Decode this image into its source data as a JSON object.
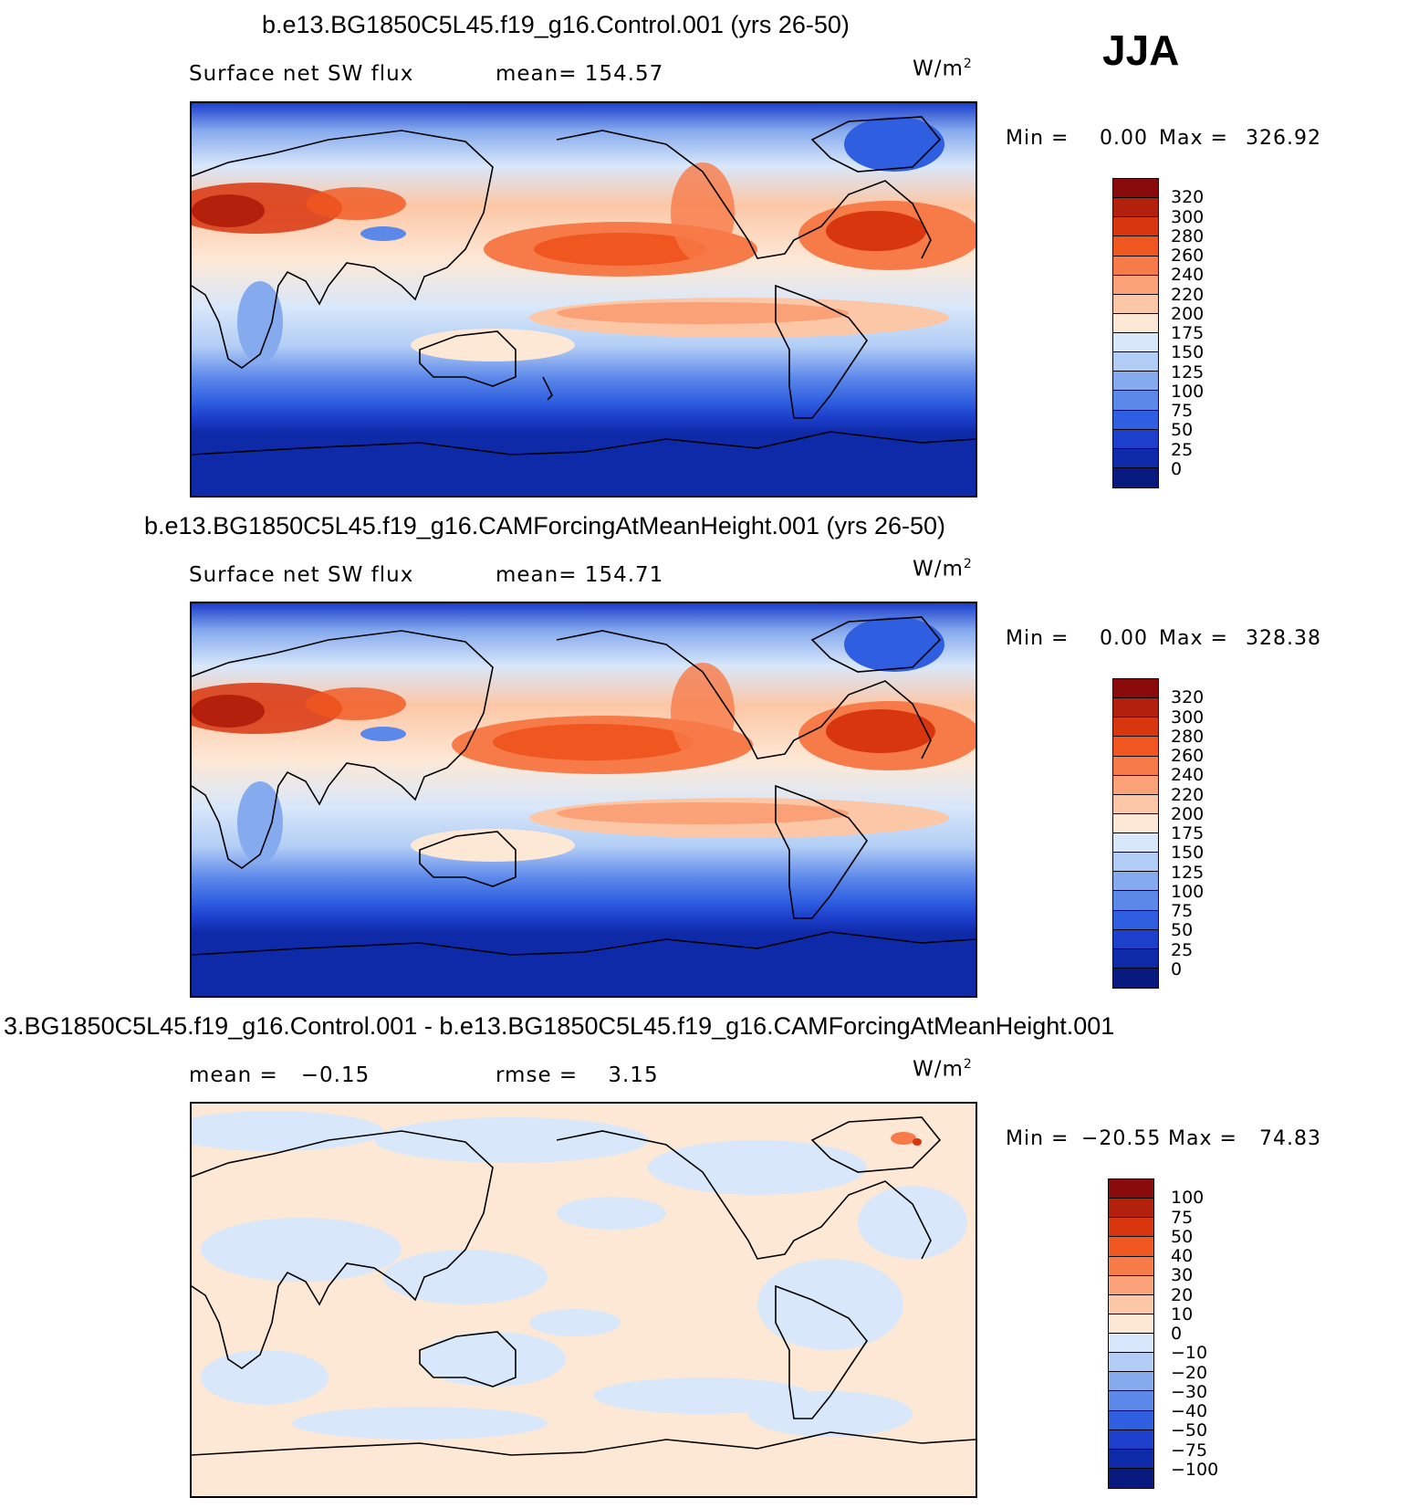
{
  "season": "JJA",
  "units_main": "W/m",
  "units_exp": "2",
  "panels": [
    {
      "title": "b.e13.BG1850C5L45.f19_g16.Control.001 (yrs 26-50)",
      "left_label": "Surface net SW flux",
      "center_label": "mean= 154.57",
      "min_label": "Min =",
      "min_value": "0.00",
      "max_label": "Max =",
      "max_value": "326.92",
      "colorbar_labels": [
        "320",
        "300",
        "280",
        "260",
        "240",
        "220",
        "200",
        "175",
        "150",
        "125",
        "100",
        "75",
        "50",
        "25",
        "0"
      ],
      "colorbar_colors": [
        "#8a0b0b",
        "#b3200c",
        "#d8360f",
        "#f0561f",
        "#f77b48",
        "#fba178",
        "#fcc7a6",
        "#fde8d6",
        "#d8e7fa",
        "#b2cdf5",
        "#86aaee",
        "#5c88ea",
        "#2f5fe0",
        "#1c3fcc",
        "#0e2aa8",
        "#081a80"
      ]
    },
    {
      "title": "b.e13.BG1850C5L45.f19_g16.CAMForcingAtMeanHeight.001 (yrs 26-50)",
      "left_label": "Surface net SW flux",
      "center_label": "mean= 154.71",
      "min_label": "Min =",
      "min_value": "0.00",
      "max_label": "Max =",
      "max_value": "328.38",
      "colorbar_labels": [
        "320",
        "300",
        "280",
        "260",
        "240",
        "220",
        "200",
        "175",
        "150",
        "125",
        "100",
        "75",
        "50",
        "25",
        "0"
      ],
      "colorbar_colors": [
        "#8a0b0b",
        "#b3200c",
        "#d8360f",
        "#f0561f",
        "#f77b48",
        "#fba178",
        "#fcc7a6",
        "#fde8d6",
        "#d8e7fa",
        "#b2cdf5",
        "#86aaee",
        "#5c88ea",
        "#2f5fe0",
        "#1c3fcc",
        "#0e2aa8",
        "#081a80"
      ]
    },
    {
      "title": "3.BG1850C5L45.f19_g16.Control.001 - b.e13.BG1850C5L45.f19_g16.CAMForcingAtMeanHeight.001",
      "left_label": "mean =   −0.15",
      "center_label": "rmse =    3.15",
      "min_label": "Min =",
      "min_value": "−20.55",
      "max_label": "Max =",
      "max_value": "74.83",
      "colorbar_labels": [
        "100",
        "75",
        "50",
        "40",
        "30",
        "20",
        "10",
        "0",
        "−10",
        "−20",
        "−30",
        "−40",
        "−50",
        "−75",
        "−100"
      ],
      "colorbar_colors": [
        "#8a0b0b",
        "#b3200c",
        "#d8360f",
        "#f0561f",
        "#f77b48",
        "#fba178",
        "#fcc7a6",
        "#fde8d6",
        "#d8e7fa",
        "#b2cdf5",
        "#86aaee",
        "#5c88ea",
        "#2f5fe0",
        "#1c3fcc",
        "#0e2aa8",
        "#081a80"
      ]
    }
  ],
  "colors": {
    "ocean_tropic_warm": "#f77b48",
    "polar_cold": "#0e2aa8",
    "diff_positive": "#fde8d6",
    "diff_negative": "#d8e7fa"
  }
}
